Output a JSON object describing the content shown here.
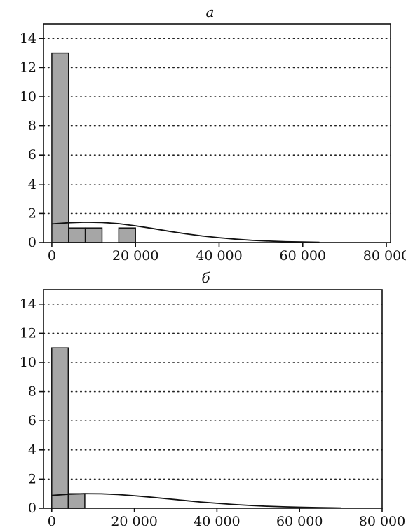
{
  "chart_data": [
    {
      "type": "bar",
      "title": "а",
      "xlim": [
        -2000,
        81000
      ],
      "ylim": [
        0,
        15
      ],
      "xticks": [
        0,
        20000,
        40000,
        60000,
        80000
      ],
      "xtick_labels": [
        "0",
        "20 000",
        "40 000",
        "60 000",
        "80 000"
      ],
      "yticks": [
        0,
        2,
        4,
        6,
        8,
        10,
        12,
        14
      ],
      "ytick_labels": [
        "0",
        "2",
        "4",
        "6",
        "8",
        "10",
        "12",
        "14"
      ],
      "grid": "horizontal-dotted",
      "bin_width": 4000,
      "bins": [
        {
          "x0": 0,
          "x1": 4000,
          "count": 13
        },
        {
          "x0": 4000,
          "x1": 8000,
          "count": 1
        },
        {
          "x0": 8000,
          "x1": 12000,
          "count": 1
        },
        {
          "x0": 16000,
          "x1": 20000,
          "count": 1
        }
      ],
      "curve": {
        "x": [
          0,
          4000,
          8000,
          12000,
          16000,
          20000,
          24000,
          28000,
          32000,
          36000,
          40000,
          44000,
          48000,
          52000,
          56000,
          60000,
          64000
        ],
        "y": [
          1.28,
          1.36,
          1.4,
          1.38,
          1.3,
          1.15,
          0.97,
          0.78,
          0.6,
          0.45,
          0.33,
          0.23,
          0.15,
          0.1,
          0.06,
          0.04,
          0.02
        ]
      }
    },
    {
      "type": "bar",
      "title": "б",
      "xlim": [
        -2000,
        80000
      ],
      "ylim": [
        0,
        15
      ],
      "xticks": [
        0,
        20000,
        40000,
        60000,
        80000
      ],
      "xtick_labels": [
        "0",
        "20 000",
        "40 000",
        "60 000",
        "80 000"
      ],
      "yticks": [
        0,
        2,
        4,
        6,
        8,
        10,
        12,
        14
      ],
      "ytick_labels": [
        "0",
        "2",
        "4",
        "6",
        "8",
        "10",
        "12",
        "14"
      ],
      "grid": "horizontal-dotted",
      "bin_width": 4000,
      "bins": [
        {
          "x0": 0,
          "x1": 4000,
          "count": 11
        },
        {
          "x0": 4000,
          "x1": 8000,
          "count": 1
        }
      ],
      "curve": {
        "x": [
          0,
          4000,
          8000,
          12000,
          16000,
          20000,
          24000,
          28000,
          32000,
          36000,
          40000,
          44000,
          48000,
          52000,
          56000,
          60000,
          64000,
          68000,
          70000
        ],
        "y": [
          0.88,
          0.96,
          1.0,
          0.99,
          0.94,
          0.86,
          0.76,
          0.65,
          0.54,
          0.43,
          0.34,
          0.26,
          0.19,
          0.14,
          0.1,
          0.07,
          0.05,
          0.03,
          0.02
        ]
      }
    }
  ]
}
